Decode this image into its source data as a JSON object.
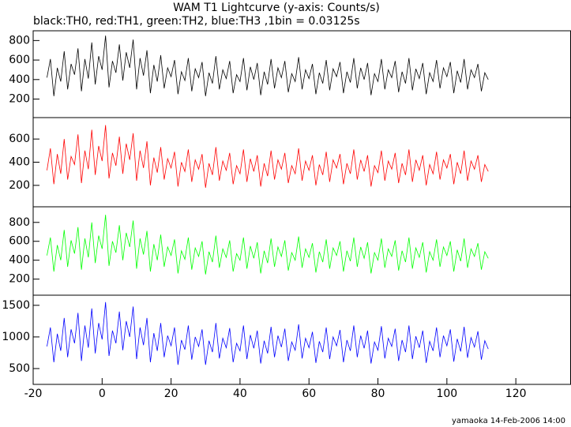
{
  "title": "WAM T1 Lightcurve (y-axis: Counts/s)",
  "subtitle": "black:TH0, red:TH1, green:TH2, blue:TH3 ,1bin = 0.03125s",
  "footer": "yamaoka 14-Feb-2006 14:00",
  "x": [
    -16,
    -15,
    -14,
    -13,
    -12,
    -11,
    -10,
    -9,
    -8,
    -7,
    -6,
    -5,
    -4,
    -3,
    -2,
    -1,
    0,
    1,
    2,
    3,
    4,
    5,
    6,
    7,
    8,
    9,
    10,
    11,
    12,
    13,
    14,
    15,
    16,
    17,
    18,
    19,
    20,
    21,
    22,
    23,
    24,
    25,
    26,
    27,
    28,
    29,
    30,
    31,
    32,
    33,
    34,
    35,
    36,
    37,
    38,
    39,
    40,
    41,
    42,
    43,
    44,
    45,
    46,
    47,
    48,
    49,
    50,
    51,
    52,
    53,
    54,
    55,
    56,
    57,
    58,
    59,
    60,
    61,
    62,
    63,
    64,
    65,
    66,
    67,
    68,
    69,
    70,
    71,
    72,
    73,
    74,
    75,
    76,
    77,
    78,
    79,
    80,
    81,
    82,
    83,
    84,
    85,
    86,
    87,
    88,
    89,
    90,
    91,
    92,
    93,
    94,
    95,
    96,
    97,
    98,
    99,
    100,
    101,
    102,
    103,
    104,
    105,
    106,
    107,
    108,
    109,
    110,
    111,
    112
  ],
  "chart_data": [
    {
      "type": "line",
      "color": "#000000",
      "xlim": [
        -20,
        136
      ],
      "ylim": [
        10,
        900
      ],
      "yticks": [
        200,
        400,
        600,
        800
      ],
      "values": [
        420,
        610,
        230,
        520,
        380,
        690,
        300,
        560,
        450,
        720,
        280,
        610,
        410,
        780,
        350,
        640,
        500,
        850,
        320,
        590,
        470,
        760,
        390,
        680,
        520,
        810,
        300,
        620,
        440,
        700,
        260,
        550,
        380,
        650,
        310,
        520,
        430,
        600,
        250,
        480,
        390,
        620,
        280,
        510,
        420,
        580,
        230,
        470,
        360,
        640,
        300,
        500,
        410,
        590,
        260,
        450,
        380,
        620,
        290,
        530,
        400,
        570,
        240,
        480,
        350,
        610,
        310,
        520,
        420,
        590,
        270,
        460,
        380,
        630,
        300,
        500,
        410,
        560,
        250,
        470,
        360,
        600,
        290,
        510,
        430,
        580,
        260,
        480,
        370,
        620,
        310,
        520,
        400,
        570,
        240,
        460,
        380,
        610,
        300,
        500,
        420,
        590,
        270,
        480,
        360,
        620,
        290,
        510,
        410,
        570,
        250,
        470,
        380,
        600,
        310,
        520,
        430,
        580,
        260,
        490,
        370,
        610,
        300,
        500,
        420,
        560,
        280,
        470,
        400
      ]
    },
    {
      "type": "line",
      "color": "#ff0000",
      "xlim": [
        -20,
        136
      ],
      "ylim": [
        15,
        785
      ],
      "yticks": [
        200,
        400,
        600
      ],
      "values": [
        330,
        520,
        210,
        470,
        300,
        600,
        250,
        450,
        380,
        640,
        220,
        500,
        340,
        680,
        290,
        540,
        410,
        720,
        260,
        480,
        370,
        620,
        300,
        560,
        420,
        650,
        240,
        500,
        350,
        580,
        200,
        440,
        310,
        530,
        250,
        430,
        350,
        490,
        190,
        400,
        320,
        510,
        230,
        420,
        340,
        470,
        180,
        390,
        290,
        530,
        240,
        410,
        330,
        480,
        210,
        370,
        300,
        510,
        230,
        430,
        320,
        460,
        190,
        390,
        280,
        500,
        250,
        420,
        340,
        480,
        220,
        370,
        300,
        520,
        240,
        410,
        330,
        460,
        200,
        380,
        290,
        490,
        230,
        420,
        350,
        470,
        210,
        390,
        300,
        510,
        250,
        420,
        320,
        460,
        190,
        370,
        310,
        500,
        240,
        410,
        340,
        480,
        220,
        390,
        290,
        510,
        230,
        420,
        330,
        460,
        200,
        380,
        300,
        490,
        250,
        420,
        350,
        470,
        210,
        400,
        300,
        500,
        240,
        410,
        340,
        460,
        230,
        380,
        320
      ]
    },
    {
      "type": "line",
      "color": "#00ff00",
      "xlim": [
        -20,
        136
      ],
      "ylim": [
        30,
        965
      ],
      "yticks": [
        200,
        400,
        600,
        800
      ],
      "values": [
        450,
        640,
        280,
        560,
        400,
        720,
        330,
        610,
        470,
        750,
        300,
        630,
        430,
        800,
        370,
        660,
        520,
        880,
        340,
        600,
        480,
        770,
        400,
        690,
        540,
        820,
        310,
        630,
        460,
        710,
        280,
        570,
        400,
        670,
        330,
        540,
        450,
        620,
        260,
        500,
        410,
        640,
        300,
        530,
        440,
        600,
        250,
        490,
        380,
        660,
        320,
        520,
        430,
        610,
        280,
        470,
        400,
        640,
        310,
        550,
        420,
        590,
        260,
        500,
        370,
        630,
        330,
        540,
        440,
        610,
        290,
        480,
        400,
        650,
        320,
        520,
        430,
        580,
        270,
        490,
        380,
        620,
        310,
        530,
        450,
        600,
        280,
        500,
        390,
        640,
        330,
        540,
        420,
        590,
        260,
        480,
        400,
        630,
        320,
        520,
        440,
        610,
        290,
        500,
        380,
        640,
        310,
        530,
        430,
        590,
        270,
        490,
        400,
        620,
        330,
        540,
        450,
        600,
        280,
        510,
        390,
        630,
        320,
        520,
        440,
        580,
        300,
        490,
        420
      ]
    },
    {
      "type": "line",
      "color": "#0000ff",
      "xlim": [
        -20,
        136
      ],
      "ylim": [
        250,
        1660
      ],
      "yticks": [
        500,
        1000,
        1500
      ],
      "xticks": [
        -20,
        0,
        20,
        40,
        60,
        80,
        100,
        120
      ],
      "values": [
        850,
        1150,
        600,
        1050,
        780,
        1300,
        680,
        1120,
        900,
        1380,
        620,
        1180,
        830,
        1450,
        740,
        1220,
        960,
        1550,
        700,
        1100,
        900,
        1400,
        790,
        1250,
        1000,
        1480,
        650,
        1150,
        870,
        1300,
        600,
        1060,
        780,
        1220,
        680,
        1020,
        860,
        1150,
        560,
        950,
        800,
        1180,
        640,
        1000,
        850,
        1120,
        560,
        940,
        760,
        1220,
        660,
        980,
        830,
        1140,
        600,
        900,
        780,
        1180,
        650,
        1030,
        820,
        1100,
        580,
        940,
        740,
        1160,
        680,
        1020,
        840,
        1130,
        620,
        920,
        790,
        1200,
        660,
        980,
        830,
        1080,
        590,
        930,
        760,
        1150,
        650,
        1000,
        860,
        1110,
        600,
        950,
        780,
        1180,
        680,
        1020,
        820,
        1100,
        580,
        920,
        790,
        1170,
        660,
        980,
        850,
        1130,
        620,
        950,
        760,
        1180,
        650,
        1010,
        830,
        1100,
        590,
        930,
        780,
        1150,
        680,
        1020,
        860,
        1120,
        610,
        970,
        770,
        1160,
        670,
        990,
        840,
        1090,
        640,
        940,
        810
      ]
    }
  ]
}
